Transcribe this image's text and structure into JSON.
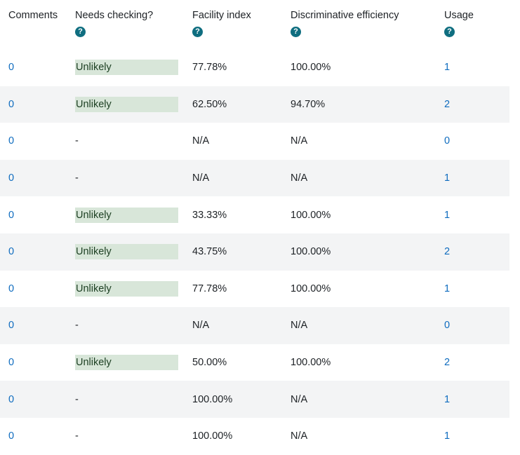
{
  "headers": {
    "comments": "Comments",
    "needs_checking": "Needs checking?",
    "facility_index": "Facility index",
    "discriminative_efficiency": "Discriminative efficiency",
    "usage": "Usage"
  },
  "help_icon_glyph": "?",
  "rows": [
    {
      "comments": "0",
      "needs_checking": "Unlikely",
      "facility": "77.78%",
      "discrim": "100.00%",
      "usage": "1"
    },
    {
      "comments": "0",
      "needs_checking": "Unlikely",
      "facility": "62.50%",
      "discrim": "94.70%",
      "usage": "2"
    },
    {
      "comments": "0",
      "needs_checking": "-",
      "facility": "N/A",
      "discrim": "N/A",
      "usage": "0"
    },
    {
      "comments": "0",
      "needs_checking": "-",
      "facility": "N/A",
      "discrim": "N/A",
      "usage": "1"
    },
    {
      "comments": "0",
      "needs_checking": "Unlikely",
      "facility": "33.33%",
      "discrim": "100.00%",
      "usage": "1"
    },
    {
      "comments": "0",
      "needs_checking": "Unlikely",
      "facility": "43.75%",
      "discrim": "100.00%",
      "usage": "2"
    },
    {
      "comments": "0",
      "needs_checking": "Unlikely",
      "facility": "77.78%",
      "discrim": "100.00%",
      "usage": "1"
    },
    {
      "comments": "0",
      "needs_checking": "-",
      "facility": "N/A",
      "discrim": "N/A",
      "usage": "0"
    },
    {
      "comments": "0",
      "needs_checking": "Unlikely",
      "facility": "50.00%",
      "discrim": "100.00%",
      "usage": "2"
    },
    {
      "comments": "0",
      "needs_checking": "-",
      "facility": "100.00%",
      "discrim": "N/A",
      "usage": "1"
    },
    {
      "comments": "0",
      "needs_checking": "-",
      "facility": "100.00%",
      "discrim": "N/A",
      "usage": "1"
    }
  ],
  "colors": {
    "link": "#0f6cbf",
    "help_icon": "#0f6e80",
    "badge_bg": "#d8e6d9",
    "row_alt": "#f3f4f5"
  }
}
